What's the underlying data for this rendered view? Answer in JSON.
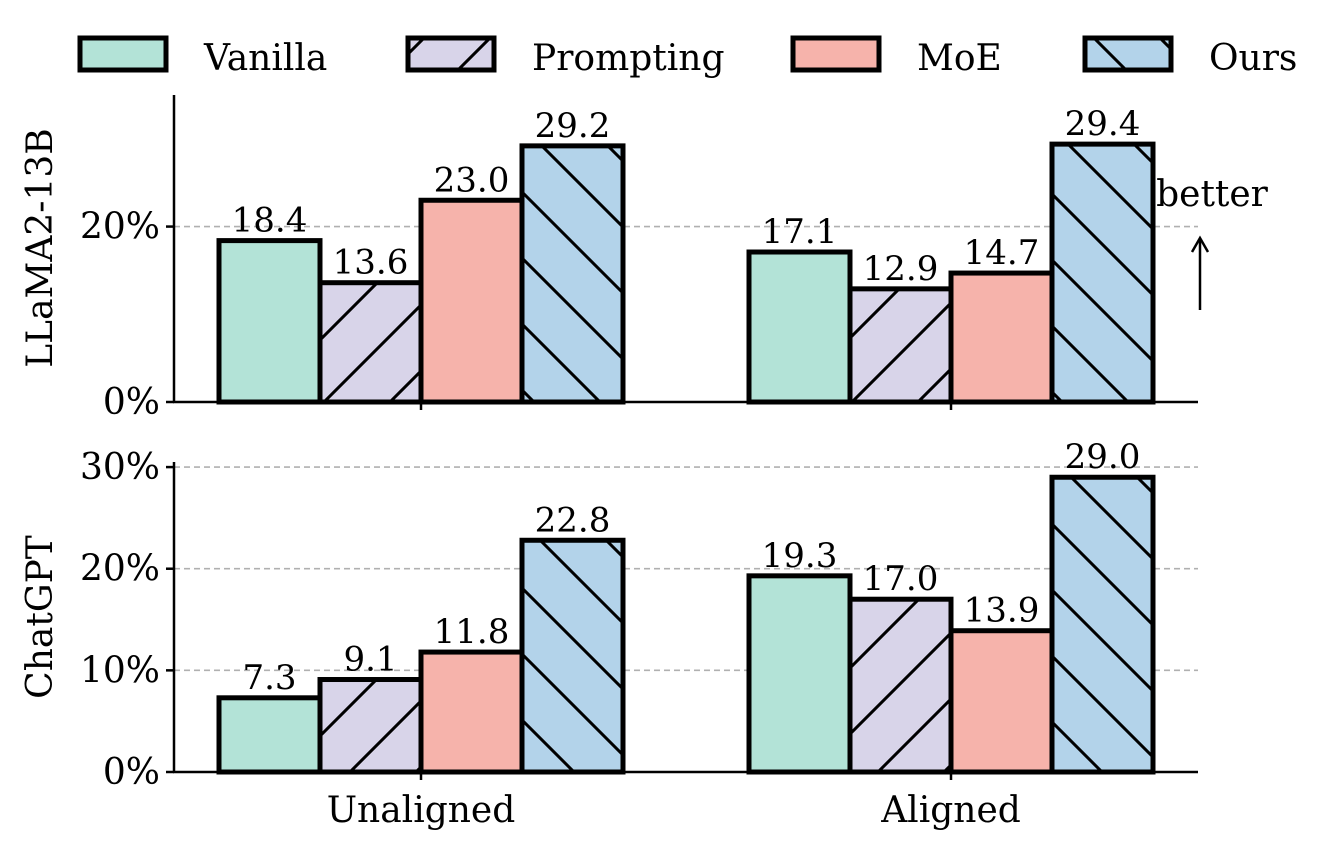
{
  "legend": [
    {
      "name": "Vanilla",
      "color": "#b3e3d7",
      "hatch": "none"
    },
    {
      "name": "Prompting",
      "color": "#d8d4e9",
      "hatch": "forward"
    },
    {
      "name": "MoE",
      "color": "#f6b3ab",
      "hatch": "none"
    },
    {
      "name": "Ours",
      "color": "#b3d3ea",
      "hatch": "backward"
    }
  ],
  "annotation": {
    "text": "better",
    "arrow": "up"
  },
  "chart_data": [
    {
      "type": "bar",
      "ylabel": "LLaMA2-13B",
      "categories": [
        "Unaligned",
        "Aligned"
      ],
      "series": [
        {
          "name": "Vanilla",
          "values": [
            18.4,
            17.1
          ]
        },
        {
          "name": "Prompting",
          "values": [
            13.6,
            12.9
          ]
        },
        {
          "name": "MoE",
          "values": [
            23.0,
            14.7
          ]
        },
        {
          "name": "Ours",
          "values": [
            29.2,
            29.4
          ]
        }
      ],
      "value_labels": [
        [
          "18.4",
          "17.1"
        ],
        [
          "13.6",
          "12.9"
        ],
        [
          "23.0",
          "14.7"
        ],
        [
          "29.2",
          "29.4"
        ]
      ],
      "yticks": [
        0,
        20
      ],
      "ytick_labels": [
        "0%",
        "20%"
      ],
      "ylim": [
        0,
        35
      ],
      "grid": "dashed horizontal"
    },
    {
      "type": "bar",
      "ylabel": "ChatGPT",
      "categories": [
        "Unaligned",
        "Aligned"
      ],
      "series": [
        {
          "name": "Vanilla",
          "values": [
            7.3,
            19.3
          ]
        },
        {
          "name": "Prompting",
          "values": [
            9.1,
            17.0
          ]
        },
        {
          "name": "MoE",
          "values": [
            11.8,
            13.9
          ]
        },
        {
          "name": "Ours",
          "values": [
            22.8,
            29.0
          ]
        }
      ],
      "value_labels": [
        [
          "7.3",
          "19.3"
        ],
        [
          "9.1",
          "17.0"
        ],
        [
          "11.8",
          "13.9"
        ],
        [
          "22.8",
          "29.0"
        ]
      ],
      "yticks": [
        0,
        10,
        20,
        30
      ],
      "ytick_labels": [
        "0%",
        "10%",
        "20%",
        "30%"
      ],
      "ylim": [
        0,
        30.5
      ],
      "grid": "dashed horizontal"
    }
  ]
}
